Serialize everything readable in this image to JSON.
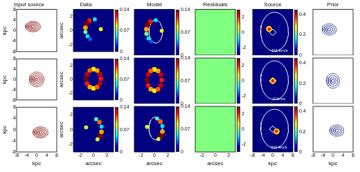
{
  "chart_data": [
    {
      "type": "contour",
      "title": "Input source",
      "ylabel": "kpc",
      "xlim": [
        -8,
        8
      ],
      "ylim": [
        -8,
        8
      ],
      "xticks": [
        -8,
        -4,
        0,
        4,
        8
      ],
      "yticks": [
        -8,
        -4,
        0,
        4,
        8
      ],
      "tick_labels": "y",
      "color": "#8b1a1a",
      "contours": [
        {
          "cx": -1.5,
          "cy": 1.5,
          "rx": 0.6,
          "ry": 0.4
        },
        {
          "cx": -1.5,
          "cy": 1.5,
          "rx": 1.2,
          "ry": 0.8
        },
        {
          "cx": -1.5,
          "cy": 1.5,
          "rx": 1.8,
          "ry": 1.2
        },
        {
          "cx": -1.5,
          "cy": 1.5,
          "rx": 2.4,
          "ry": 1.6
        },
        {
          "cx": -1.5,
          "cy": 1.5,
          "rx": 3.0,
          "ry": 2.0
        }
      ]
    },
    {
      "type": "image",
      "title": "Data",
      "ylabel": "arcsec",
      "xlim": [
        -3,
        3
      ],
      "ylim": [
        -3,
        3
      ],
      "xticks": [
        -2,
        0,
        2
      ],
      "yticks": [
        -2,
        0,
        2
      ],
      "tick_labels": "y",
      "background": 0,
      "colorbar": {
        "range": [
          0,
          0.14
        ],
        "ticks": [
          0,
          0.07,
          0.14
        ]
      },
      "image": [
        [
          -0.6,
          1.4,
          0.12,
          0.35
        ],
        [
          -1.0,
          1.0,
          0.14,
          0.4
        ],
        [
          -1.2,
          0.4,
          0.1,
          0.35
        ],
        [
          -1.2,
          -0.2,
          0.07,
          0.3
        ],
        [
          -0.9,
          -0.8,
          0.05,
          0.3
        ],
        [
          -0.5,
          -1.2,
          0.03,
          0.3
        ],
        [
          1.1,
          0.2,
          0.09,
          0.3
        ],
        [
          0.2,
          1.6,
          0.05,
          0.3
        ]
      ]
    },
    {
      "type": "image",
      "title": "Model",
      "xlim": [
        -3,
        3
      ],
      "ylim": [
        -3,
        3
      ],
      "xticks": [
        -2,
        0,
        2
      ],
      "yticks": [
        -2,
        0,
        2
      ],
      "tick_labels": false,
      "background": 0,
      "colorbar": {
        "range": [
          0,
          0.14
        ],
        "ticks": [
          0,
          0.07,
          0.14
        ]
      },
      "color": "#ffffff",
      "image": [
        [
          -0.6,
          1.4,
          0.12,
          0.35
        ],
        [
          -1.0,
          1.0,
          0.14,
          0.4
        ],
        [
          -1.2,
          0.4,
          0.1,
          0.35
        ],
        [
          -1.2,
          -0.2,
          0.07,
          0.3
        ],
        [
          -0.9,
          -0.8,
          0.05,
          0.3
        ],
        [
          -0.5,
          -1.2,
          0.03,
          0.3
        ],
        [
          1.1,
          0.2,
          0.09,
          0.3
        ],
        [
          0.2,
          1.6,
          0.05,
          0.3
        ]
      ],
      "curves": [
        {
          "cx": 0.2,
          "cy": 0.1,
          "rx": 1.0,
          "ry": 1.5
        }
      ]
    },
    {
      "type": "image",
      "title": "Residuals",
      "xlim": [
        -3,
        3
      ],
      "ylim": [
        -3,
        3
      ],
      "xticks": [
        -2,
        0,
        2
      ],
      "yticks": [
        -2,
        0,
        2
      ],
      "tick_labels": false,
      "background": 0,
      "colorbar": {
        "range": [
          -3,
          3
        ],
        "ticks": [
          -2,
          0,
          2
        ]
      }
    },
    {
      "type": "image",
      "title": "Source",
      "xlim": [
        -8,
        8
      ],
      "ylim": [
        -8,
        8
      ],
      "xticks": [
        -8,
        -4,
        0,
        4,
        8
      ],
      "yticks": [
        -8,
        -4,
        0,
        4,
        8
      ],
      "tick_labels": false,
      "background": 0,
      "colorbar": {
        "range": [
          0,
          0.45
        ],
        "ticks": [
          0,
          0.2,
          0.4
        ]
      },
      "color": "#ffffff",
      "image": [
        [
          -1.5,
          1.2,
          0.3,
          1.2
        ],
        [
          -1.4,
          1.1,
          0.4,
          0.6
        ]
      ],
      "curves": [
        {
          "cx": 0.7,
          "cy": 0.2,
          "rx": 5.5,
          "ry": 6.8
        }
      ],
      "polygons": [
        [
          [
            1.4,
            0
          ],
          [
            0,
            1.1
          ],
          [
            -1.4,
            0
          ],
          [
            0,
            -1.1
          ],
          [
            1.4,
            0
          ]
        ]
      ],
      "annotation": {
        "text": "-111 km/s",
        "x": 2.5,
        "y": -6.3
      }
    },
    {
      "type": "contour",
      "title": "Prior",
      "xlim": [
        -8,
        8
      ],
      "ylim": [
        -8,
        8
      ],
      "xticks": [
        -8,
        -4,
        0,
        4,
        8
      ],
      "yticks": [
        -8,
        -4,
        0,
        4,
        8
      ],
      "tick_labels": false,
      "color": "#1f2f8f",
      "contours": [
        {
          "cx": -1.5,
          "cy": 1.0,
          "rx": 0.7,
          "ry": 0.5
        },
        {
          "cx": -1.5,
          "cy": 1.0,
          "rx": 1.4,
          "ry": 1.0
        },
        {
          "cx": -1.5,
          "cy": 1.0,
          "rx": 2.1,
          "ry": 1.5
        },
        {
          "cx": -1.5,
          "cy": 1.0,
          "rx": 2.8,
          "ry": 2.0
        }
      ]
    },
    {
      "type": "contour",
      "ylabel": "kpc",
      "xlim": [
        -8,
        8
      ],
      "ylim": [
        -8,
        8
      ],
      "xticks": [
        -8,
        -4,
        0,
        4,
        8
      ],
      "yticks": [
        -8,
        -4,
        0,
        4,
        8
      ],
      "tick_labels": "y",
      "color": "#8b1a1a",
      "contours": [
        {
          "cx": 0,
          "cy": 0,
          "rx": 0.5,
          "ry": 0.5
        },
        {
          "cx": 0,
          "cy": 0,
          "rx": 1.1,
          "ry": 1.1
        },
        {
          "cx": 0,
          "cy": 0,
          "rx": 1.7,
          "ry": 1.7
        },
        {
          "cx": 0,
          "cy": 0,
          "rx": 2.3,
          "ry": 2.3
        },
        {
          "cx": 0,
          "cy": 0,
          "rx": 2.9,
          "ry": 2.9
        }
      ]
    },
    {
      "type": "image",
      "ylabel": "arcsec",
      "xlim": [
        -3,
        3
      ],
      "ylim": [
        -3,
        3
      ],
      "xticks": [
        -2,
        0,
        2
      ],
      "yticks": [
        -2,
        0,
        2
      ],
      "tick_labels": "y",
      "background": 0,
      "colorbar": {
        "range": [
          0,
          0.14
        ],
        "ticks": [
          0,
          0.07,
          0.14
        ]
      },
      "image": [
        [
          1.1,
          0.1,
          0.12,
          0.35
        ],
        [
          0.95,
          0.8,
          0.13,
          0.35
        ],
        [
          0.55,
          1.3,
          0.1,
          0.35
        ],
        [
          0,
          1.5,
          0.09,
          0.35
        ],
        [
          -0.55,
          1.3,
          0.11,
          0.35
        ],
        [
          -0.95,
          0.8,
          0.13,
          0.35
        ],
        [
          -1.1,
          0.1,
          0.14,
          0.35
        ],
        [
          -0.95,
          -0.6,
          0.12,
          0.35
        ],
        [
          -0.55,
          -1.1,
          0.1,
          0.35
        ],
        [
          0,
          -1.3,
          0.09,
          0.35
        ],
        [
          0.55,
          -1.1,
          0.11,
          0.35
        ],
        [
          0.95,
          -0.6,
          0.13,
          0.35
        ]
      ]
    },
    {
      "type": "image",
      "xlim": [
        -3,
        3
      ],
      "ylim": [
        -3,
        3
      ],
      "xticks": [
        -2,
        0,
        2
      ],
      "yticks": [
        -2,
        0,
        2
      ],
      "tick_labels": false,
      "background": 0,
      "colorbar": {
        "range": [
          0,
          0.14
        ],
        "ticks": [
          0,
          0.07,
          0.14
        ]
      },
      "image": [
        [
          1.1,
          0.1,
          0.12,
          0.35
        ],
        [
          0.95,
          0.8,
          0.13,
          0.35
        ],
        [
          0.55,
          1.3,
          0.1,
          0.35
        ],
        [
          0,
          1.5,
          0.09,
          0.35
        ],
        [
          -0.55,
          1.3,
          0.11,
          0.35
        ],
        [
          -0.95,
          0.8,
          0.13,
          0.35
        ],
        [
          -1.1,
          0.1,
          0.14,
          0.35
        ],
        [
          -0.95,
          -0.6,
          0.12,
          0.35
        ],
        [
          -0.55,
          -1.1,
          0.1,
          0.35
        ],
        [
          0,
          -1.3,
          0.09,
          0.35
        ],
        [
          0.55,
          -1.1,
          0.11,
          0.35
        ],
        [
          0.95,
          -0.6,
          0.13,
          0.35
        ]
      ]
    },
    {
      "type": "image",
      "xlim": [
        -3,
        3
      ],
      "ylim": [
        -3,
        3
      ],
      "xticks": [
        -2,
        0,
        2
      ],
      "yticks": [
        -2,
        0,
        2
      ],
      "tick_labels": false,
      "background": 0,
      "colorbar": {
        "range": [
          -3,
          3
        ],
        "ticks": [
          -2,
          0,
          2
        ]
      }
    },
    {
      "type": "image",
      "xlim": [
        -8,
        8
      ],
      "ylim": [
        -8,
        8
      ],
      "xticks": [
        -8,
        -4,
        0,
        4,
        8
      ],
      "yticks": [
        -8,
        -4,
        0,
        4,
        8
      ],
      "tick_labels": false,
      "background": 0,
      "colorbar": {
        "range": [
          0,
          0.45
        ],
        "ticks": [
          0,
          0.2,
          0.4
        ]
      },
      "color": "#ffffff",
      "image": [
        [
          0,
          0,
          0.3,
          1.2
        ],
        [
          0,
          0,
          0.4,
          0.6
        ]
      ],
      "curves": [
        {
          "cx": 0.7,
          "cy": 0.2,
          "rx": 5.5,
          "ry": 6.8
        }
      ],
      "polygons": [
        [
          [
            1.4,
            0
          ],
          [
            0,
            1.1
          ],
          [
            -1.4,
            0
          ],
          [
            0,
            -1.1
          ],
          [
            1.4,
            0
          ]
        ]
      ],
      "annotation": {
        "text": "0 km/s",
        "x": 2.5,
        "y": -6.3
      }
    },
    {
      "type": "contour",
      "xlim": [
        -8,
        8
      ],
      "ylim": [
        -8,
        8
      ],
      "xticks": [
        -8,
        -4,
        0,
        4,
        8
      ],
      "yticks": [
        -8,
        -4,
        0,
        4,
        8
      ],
      "tick_labels": false,
      "color": "#1f2f8f",
      "contours": [
        {
          "cx": 0,
          "cy": 0,
          "rx": 0.6,
          "ry": 0.6
        },
        {
          "cx": 0,
          "cy": 0,
          "rx": 1.2,
          "ry": 1.2
        },
        {
          "cx": 0,
          "cy": 0,
          "rx": 1.9,
          "ry": 1.9
        },
        {
          "cx": 0,
          "cy": 0,
          "rx": 2.6,
          "ry": 2.6
        }
      ]
    },
    {
      "type": "contour",
      "xlabel": "kpc",
      "ylabel": "kpc",
      "xlim": [
        -8,
        8
      ],
      "ylim": [
        -8,
        8
      ],
      "xticks": [
        -8,
        -4,
        0,
        4,
        8
      ],
      "yticks": [
        -8,
        -4,
        0,
        4,
        8
      ],
      "tick_labels": true,
      "color": "#8b1a1a",
      "contours": [
        {
          "cx": 1.5,
          "cy": -1.0,
          "rx": 0.6,
          "ry": 0.4
        },
        {
          "cx": 1.5,
          "cy": -1.0,
          "rx": 1.2,
          "ry": 0.8
        },
        {
          "cx": 1.5,
          "cy": -1.0,
          "rx": 1.8,
          "ry": 1.2
        },
        {
          "cx": 1.5,
          "cy": -1.0,
          "rx": 2.4,
          "ry": 1.6
        },
        {
          "cx": 1.5,
          "cy": -1.0,
          "rx": 3.0,
          "ry": 2.0
        }
      ]
    },
    {
      "type": "image",
      "xlabel": "arcsec",
      "ylabel": "arcsec",
      "xlim": [
        -3,
        3
      ],
      "ylim": [
        -3,
        3
      ],
      "xticks": [
        -2,
        0,
        2
      ],
      "yticks": [
        -2,
        0,
        2
      ],
      "tick_labels": true,
      "background": 0,
      "colorbar": {
        "range": [
          0,
          0.14
        ],
        "ticks": [
          0,
          0.07,
          0.14
        ]
      },
      "image": [
        [
          1.0,
          -0.9,
          0.14,
          0.4
        ],
        [
          1.2,
          -0.3,
          0.1,
          0.35
        ],
        [
          0.6,
          -1.3,
          0.08,
          0.3
        ],
        [
          0.9,
          1.0,
          0.11,
          0.35
        ],
        [
          0.4,
          1.4,
          0.06,
          0.3
        ],
        [
          -1.1,
          0.3,
          0.08,
          0.3
        ],
        [
          1.2,
          0.4,
          0.05,
          0.3
        ]
      ]
    },
    {
      "type": "image",
      "xlabel": "arcsec",
      "xlim": [
        -3,
        3
      ],
      "ylim": [
        -3,
        3
      ],
      "xticks": [
        -2,
        0,
        2
      ],
      "yticks": [
        -2,
        0,
        2
      ],
      "tick_labels": "x",
      "background": 0,
      "colorbar": {
        "range": [
          0,
          0.14
        ],
        "ticks": [
          0,
          0.07,
          0.14
        ]
      },
      "color": "#ffffff",
      "image": [
        [
          1.0,
          -0.9,
          0.14,
          0.4
        ],
        [
          1.2,
          -0.3,
          0.1,
          0.35
        ],
        [
          0.6,
          -1.3,
          0.08,
          0.3
        ],
        [
          0.9,
          1.0,
          0.11,
          0.35
        ],
        [
          0.4,
          1.4,
          0.06,
          0.3
        ],
        [
          -1.1,
          0.3,
          0.08,
          0.3
        ],
        [
          1.2,
          0.4,
          0.05,
          0.3
        ]
      ],
      "curves": [
        {
          "cx": 0.2,
          "cy": 0.1,
          "rx": 1.0,
          "ry": 1.5
        }
      ]
    },
    {
      "type": "image",
      "xlabel": "arcsec",
      "xlim": [
        -3,
        3
      ],
      "ylim": [
        -3,
        3
      ],
      "xticks": [
        -2,
        0,
        2
      ],
      "yticks": [
        -2,
        0,
        2
      ],
      "tick_labels": "x",
      "background": 0,
      "colorbar": {
        "range": [
          -3,
          3
        ],
        "ticks": [
          -2,
          0,
          2
        ]
      }
    },
    {
      "type": "image",
      "xlabel": "kpc",
      "xlim": [
        -8,
        8
      ],
      "ylim": [
        -8,
        8
      ],
      "xticks": [
        -8,
        -4,
        0,
        4,
        8
      ],
      "yticks": [
        -8,
        -4,
        0,
        4,
        8
      ],
      "tick_labels": "x",
      "background": 0,
      "colorbar": {
        "range": [
          0,
          0.45
        ],
        "ticks": [
          0,
          0.2,
          0.4
        ]
      },
      "color": "#ffffff",
      "image": [
        [
          1.5,
          -0.8,
          0.3,
          1.2
        ],
        [
          1.4,
          -0.7,
          0.4,
          0.6
        ]
      ],
      "curves": [
        {
          "cx": 0.7,
          "cy": 0.2,
          "rx": 5.5,
          "ry": 6.8
        }
      ],
      "polygons": [
        [
          [
            1.4,
            0
          ],
          [
            0,
            1.1
          ],
          [
            -1.4,
            0
          ],
          [
            0,
            -1.1
          ],
          [
            1.4,
            0
          ]
        ]
      ],
      "annotation": {
        "text": "111 km/s",
        "x": 2.5,
        "y": -6.3
      }
    },
    {
      "type": "contour",
      "xlabel": "kpc",
      "xlim": [
        -8,
        8
      ],
      "ylim": [
        -8,
        8
      ],
      "xticks": [
        -8,
        -4,
        0,
        4,
        8
      ],
      "yticks": [
        -8,
        -4,
        0,
        4,
        8
      ],
      "tick_labels": "x",
      "color": "#1f2f8f",
      "contours": [
        {
          "cx": 1.5,
          "cy": -0.5,
          "rx": 0.7,
          "ry": 0.5
        },
        {
          "cx": 1.5,
          "cy": -0.5,
          "rx": 1.4,
          "ry": 1.0
        },
        {
          "cx": 1.5,
          "cy": -0.5,
          "rx": 2.1,
          "ry": 1.5
        },
        {
          "cx": 1.5,
          "cy": -0.5,
          "rx": 2.8,
          "ry": 2.0
        }
      ]
    }
  ]
}
